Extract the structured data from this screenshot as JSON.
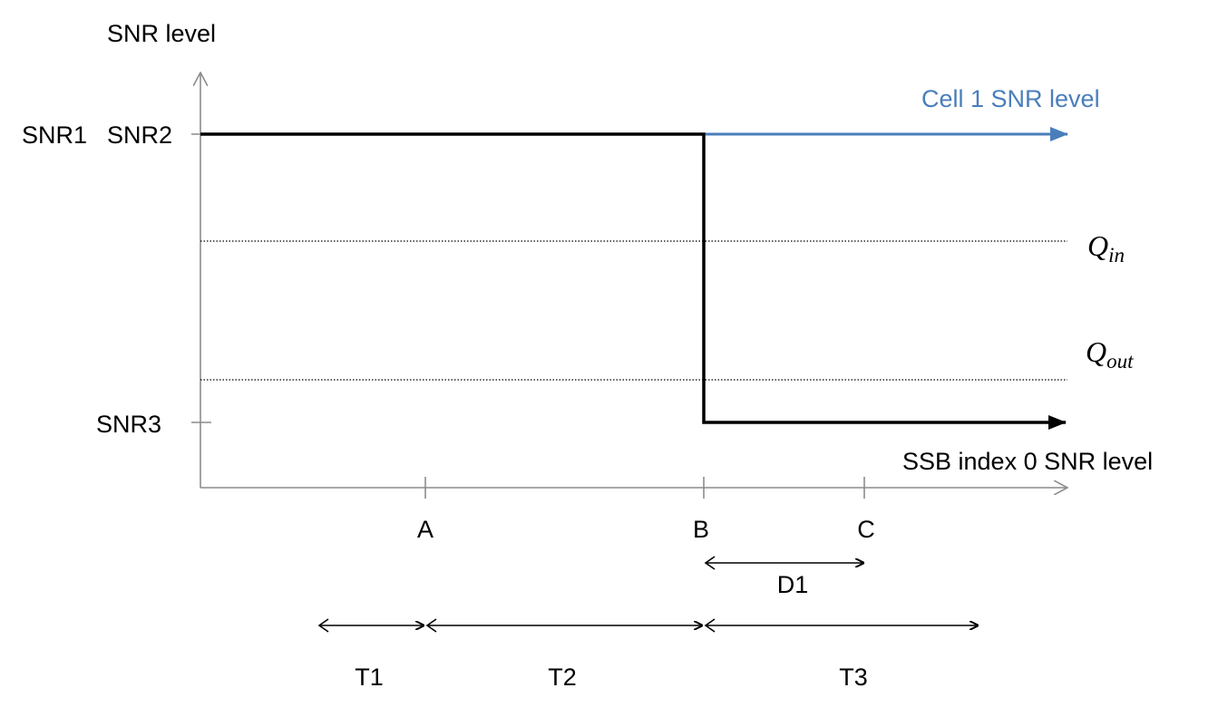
{
  "y_axis_title": "SNR level",
  "y_ticks": {
    "snr1": "SNR1",
    "snr2": "SNR2",
    "snr3": "SNR3"
  },
  "series": {
    "cell1": "Cell 1 SNR level",
    "ssb0": "SSB index 0 SNR level"
  },
  "thresholds": {
    "q_in": {
      "symbol": "Q",
      "subscript": "in"
    },
    "q_out": {
      "symbol": "Q",
      "subscript": "out"
    }
  },
  "x_ticks": [
    "A",
    "B",
    "C"
  ],
  "intervals": {
    "d1": "D1",
    "t1": "T1",
    "t2": "T2",
    "t3": "T3"
  },
  "colors": {
    "axis": "#8c8c8c",
    "ssb_line": "#000000",
    "cell1_line": "#4a7ebb",
    "cell1_label": "#4a7ebb"
  }
}
